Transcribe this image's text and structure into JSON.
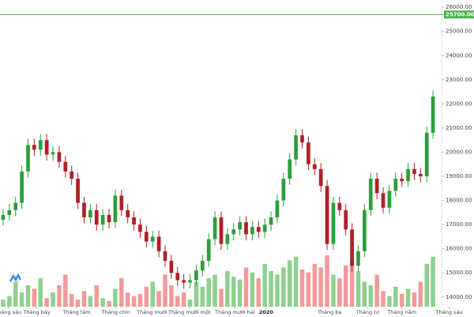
{
  "chart_data": {
    "type": "candlestick",
    "x": [
      0,
      1,
      2,
      3,
      4,
      5,
      6,
      7,
      8,
      9,
      10,
      11,
      12,
      13,
      14,
      15,
      16,
      17,
      18,
      19,
      20,
      21,
      22,
      23,
      24,
      25,
      26,
      27,
      28,
      29,
      30,
      31,
      32,
      33,
      34,
      35,
      36,
      37,
      38,
      39,
      40,
      41,
      42,
      43,
      44,
      45,
      46,
      47,
      48,
      49,
      50,
      51,
      52,
      53,
      54,
      55,
      56,
      57,
      58,
      59,
      60,
      61,
      62,
      63,
      64,
      65,
      66,
      67,
      68,
      69
    ],
    "open": [
      17200,
      17400,
      17600,
      17900,
      19200,
      20300,
      20100,
      20500,
      19900,
      20000,
      19600,
      19200,
      18900,
      17900,
      17300,
      17600,
      17000,
      17400,
      17100,
      18200,
      17600,
      17300,
      17000,
      16700,
      16300,
      16500,
      15900,
      15500,
      15000,
      14700,
      14600,
      14700,
      15100,
      15500,
      16400,
      17300,
      16200,
      16600,
      16800,
      17100,
      16600,
      16900,
      16700,
      17000,
      17300,
      18000,
      18900,
      19700,
      20700,
      20400,
      19500,
      19300,
      18600,
      16200,
      17900,
      17600,
      16800,
      15300,
      15900,
      17600,
      18900,
      18300,
      17700,
      18400,
      18900,
      18800,
      19300,
      19100,
      19000,
      20800
    ],
    "high": [
      17650,
      17850,
      18150,
      19450,
      20550,
      20550,
      20750,
      20750,
      20250,
      20250,
      19850,
      19450,
      19150,
      18150,
      17850,
      17850,
      17650,
      17650,
      18450,
      18450,
      17850,
      17550,
      17250,
      16950,
      16750,
      16750,
      16150,
      15750,
      15250,
      14950,
      14950,
      15350,
      15750,
      16650,
      17550,
      17550,
      16850,
      17050,
      17350,
      17350,
      17150,
      17150,
      17250,
      17550,
      18250,
      19150,
      19950,
      20950,
      20950,
      20650,
      19750,
      19550,
      18850,
      18150,
      18150,
      17850,
      17050,
      16150,
      17850,
      19150,
      19150,
      18550,
      18650,
      19150,
      19150,
      19550,
      19550,
      19350,
      21050,
      22550
    ],
    "low": [
      16950,
      17150,
      17350,
      17650,
      18950,
      19850,
      19850,
      19650,
      19650,
      19350,
      18950,
      18650,
      17650,
      17050,
      17050,
      16750,
      16750,
      16850,
      16850,
      17350,
      17050,
      16750,
      16450,
      16050,
      16050,
      15650,
      15250,
      14750,
      14450,
      14350,
      14350,
      14450,
      14850,
      15250,
      16150,
      15950,
      15950,
      16350,
      16550,
      16350,
      16350,
      16450,
      16450,
      16750,
      17050,
      17750,
      18650,
      19450,
      20150,
      19250,
      19050,
      18350,
      15950,
      15950,
      17350,
      16550,
      15050,
      15050,
      15650,
      17350,
      18050,
      17450,
      17450,
      18150,
      18550,
      18550,
      18850,
      18750,
      18750,
      20550
    ],
    "close": [
      17400,
      17600,
      17900,
      19200,
      20300,
      20100,
      20500,
      19900,
      20000,
      19600,
      19200,
      18900,
      17900,
      17300,
      17600,
      17000,
      17400,
      17100,
      18200,
      17600,
      17300,
      17000,
      16700,
      16300,
      16500,
      15900,
      15500,
      15000,
      14700,
      14600,
      14700,
      15100,
      15500,
      16400,
      17300,
      16200,
      16600,
      16800,
      17100,
      16600,
      16900,
      16700,
      17000,
      17300,
      18000,
      18900,
      19700,
      20700,
      20400,
      19500,
      19300,
      18600,
      16200,
      17900,
      17600,
      16800,
      15300,
      15900,
      17600,
      18900,
      18300,
      17700,
      18400,
      18900,
      18800,
      19300,
      19100,
      19000,
      20800,
      22300
    ],
    "volume": [
      10,
      15,
      35,
      20,
      30,
      25,
      40,
      12,
      20,
      30,
      45,
      18,
      10,
      22,
      15,
      30,
      12,
      8,
      25,
      40,
      20,
      15,
      18,
      28,
      35,
      22,
      45,
      30,
      15,
      20,
      10,
      35,
      28,
      40,
      45,
      25,
      50,
      42,
      38,
      55,
      48,
      40,
      60,
      50,
      45,
      55,
      65,
      70,
      52,
      48,
      60,
      55,
      72,
      45,
      40,
      58,
      62,
      50,
      35,
      30,
      45,
      22,
      15,
      28,
      18,
      25,
      20,
      35,
      60,
      70
    ],
    "up_color": "#2e9e3e",
    "down_color": "#b0202a",
    "volume_up_color": "#8fd08f",
    "volume_down_color": "#f19a9a",
    "xlim": [
      -0.5,
      70
    ],
    "xticks": [
      {
        "value": 0.8,
        "label": "Tháng sáu"
      },
      {
        "value": 5.4,
        "label": "Tháng bảy"
      },
      {
        "value": 11.8,
        "label": "Tháng tám"
      },
      {
        "value": 18.1,
        "label": "Tháng chín"
      },
      {
        "value": 23.9,
        "label": "Tháng mười"
      },
      {
        "value": 29.9,
        "label": "Tháng mười một"
      },
      {
        "value": 37.2,
        "label": "Tháng mười hai"
      },
      {
        "value": 42.2,
        "label": "2020"
      },
      {
        "value": 52.4,
        "label": "Tháng ba"
      },
      {
        "value": 58.5,
        "label": "Tháng tư"
      },
      {
        "value": 64,
        "label": "Tháng năm"
      },
      {
        "value": 71.6,
        "label": "Tháng sáu"
      }
    ],
    "ylim": [
      13600,
      26300
    ],
    "yticks": [
      {
        "value": 14000,
        "label": "14000.00"
      },
      {
        "value": 15000,
        "label": "15000.00"
      },
      {
        "value": 16000,
        "label": "16000.00"
      },
      {
        "value": 17000,
        "label": "17000.00"
      },
      {
        "value": 18000,
        "label": "18000.00"
      },
      {
        "value": 19000,
        "label": "19000.00"
      },
      {
        "value": 20000,
        "label": "20000.00"
      },
      {
        "value": 21000,
        "label": "21000.00"
      },
      {
        "value": 22000,
        "label": "22000.00"
      },
      {
        "value": 23000,
        "label": "23000.00"
      },
      {
        "value": 24000,
        "label": "24000.00"
      },
      {
        "value": 25000,
        "label": "25000.00"
      },
      {
        "value": 26000,
        "label": "26000.00"
      }
    ],
    "hline": {
      "value": 25700,
      "label": "25700.00",
      "color": "#4caf50"
    }
  }
}
